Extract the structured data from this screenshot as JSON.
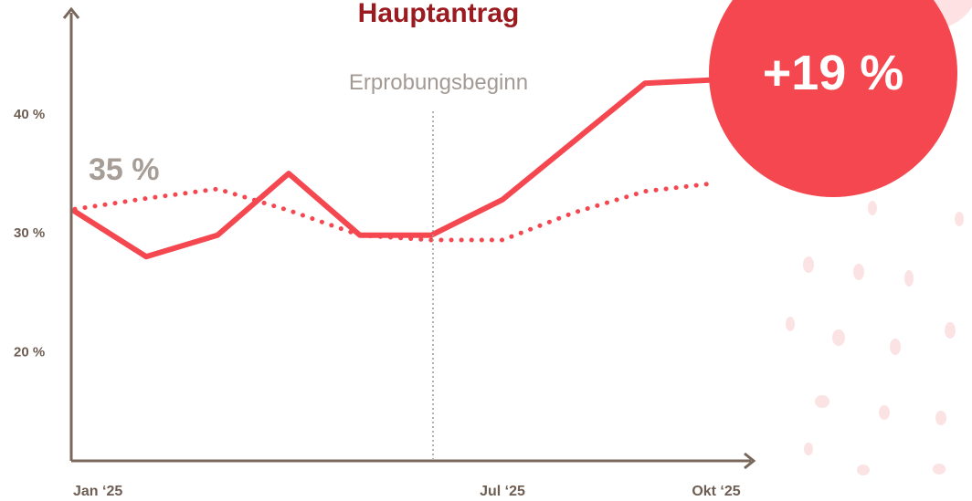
{
  "chart_data": {
    "type": "line",
    "title": "Hauptantrag",
    "categories": [
      "Jan ‘25",
      null,
      null,
      null,
      null,
      null,
      "Jul ‘25",
      null,
      null,
      "Okt ‘25"
    ],
    "series": [
      {
        "name": null,
        "style": "solid",
        "color": "#f4474f",
        "values": [
          31.8,
          28.0,
          29.8,
          35.0,
          29.8,
          29.8,
          32.8,
          37.7,
          42.6,
          42.9
        ]
      },
      {
        "name": null,
        "style": "dotted",
        "color": "#f4474f",
        "values": [
          32.0,
          32.9,
          33.7,
          31.9,
          29.8,
          29.4,
          29.4,
          31.7,
          33.5,
          34.2
        ]
      }
    ],
    "ylim": [
      10.8,
      48
    ],
    "yticks": [
      {
        "value": 20,
        "label": "20 %"
      },
      {
        "value": 30,
        "label": "30 %"
      },
      {
        "value": 40,
        "label": "40 %"
      }
    ],
    "annotations": {
      "start_value": "35 %",
      "marker": "Erprobungsbeginn",
      "badge": "+19 %"
    }
  }
}
